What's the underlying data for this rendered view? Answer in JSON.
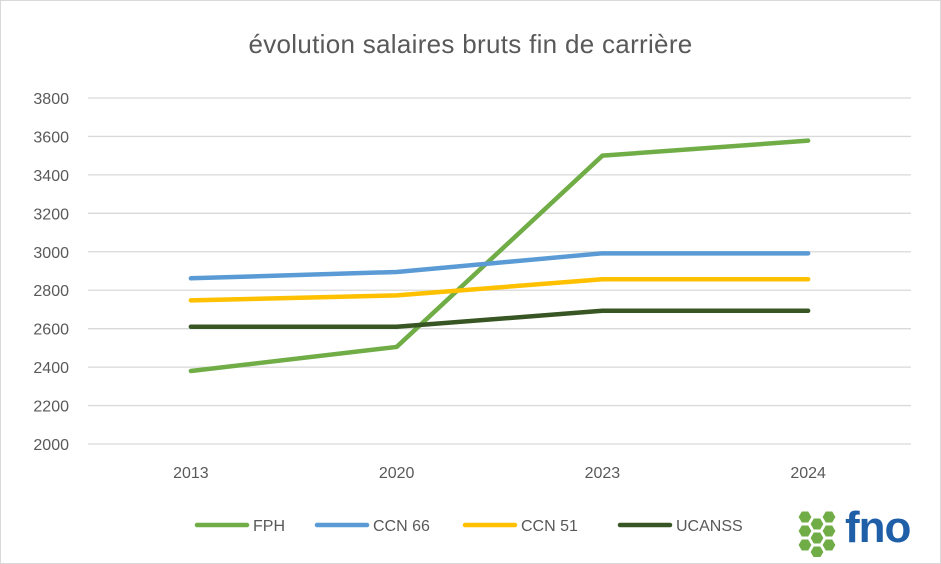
{
  "chart_data": {
    "type": "line",
    "title": "évolution salaires bruts fin de carrière",
    "categories": [
      "2013",
      "2020",
      "2023",
      "2024"
    ],
    "ylim": [
      2000,
      3800
    ],
    "yticks": [
      2000,
      2200,
      2400,
      2600,
      2800,
      3000,
      3200,
      3400,
      3600,
      3800
    ],
    "grid": true,
    "legend_position": "bottom",
    "series": [
      {
        "name": "FPH",
        "color": "#70ad47",
        "values": [
          2380,
          2505,
          3500,
          3578
        ]
      },
      {
        "name": "CCN 66",
        "color": "#5b9bd5",
        "values": [
          2862,
          2895,
          2992,
          2992
        ]
      },
      {
        "name": "CCN 51",
        "color": "#ffc000",
        "values": [
          2747,
          2773,
          2857,
          2857
        ]
      },
      {
        "name": "UCANSS",
        "color": "#375623",
        "values": [
          2610,
          2610,
          2693,
          2693
        ]
      }
    ]
  },
  "logo": {
    "text": "fno",
    "color": "#1f5fa8",
    "hex_color": "#70ad47"
  }
}
